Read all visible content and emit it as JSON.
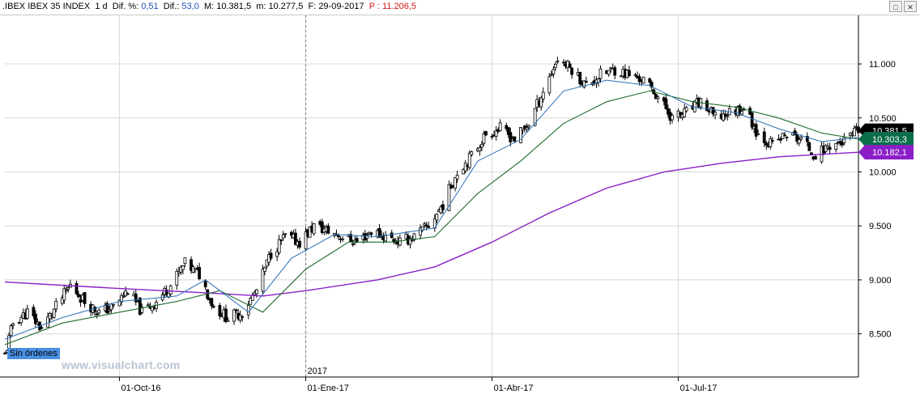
{
  "header": {
    "symbol": ".IBEX",
    "name": "IBEX 35 INDEX",
    "timeframe": "1 d",
    "diff_pct_label": "Dif. %:",
    "diff_pct_value": "0,51",
    "diff_label": "Dif.:",
    "diff_value": "53,0",
    "high_label": "M:",
    "high_value": "10.381,5",
    "low_label": "m:",
    "low_value": "10.277,5",
    "date_label": "F:",
    "date_value": "29-09-2017",
    "price_label": "P :",
    "price_value": "11.206,5"
  },
  "window_buttons": {
    "restore": "□",
    "close": "✕"
  },
  "orders_label": "Sin órdenes",
  "watermark": "www.visualchart.com",
  "colors": {
    "background": "#ffffff",
    "grid": "#d8d8d8",
    "candle": "#000000",
    "ma_fast": "#2a6fb8",
    "ma_mid": "#1d6b2a",
    "ma_slow": "#8a1fc8",
    "badge_last": "#000000",
    "badge_mid": "#0b6e4a",
    "badge_slow": "#8a1fc8"
  },
  "chart_data": {
    "type": "candlestick",
    "symbol": ".IBEX",
    "x_range": [
      "2016-08-08",
      "2017-09-29"
    ],
    "ylim": [
      8100,
      11450
    ],
    "yticks": [
      8500,
      9000,
      9500,
      10000,
      10500,
      11000
    ],
    "ytick_labels": [
      "8.500",
      "9.000",
      "9.500",
      "10.000",
      "10.500",
      "11.000"
    ],
    "year_label": {
      "date": "2017-01-02",
      "text": "2017"
    },
    "xticks": [
      {
        "date": "2016-10-03",
        "label": "01-Oct-16"
      },
      {
        "date": "2017-01-02",
        "label": "01-Ene-17"
      },
      {
        "date": "2017-04-03",
        "label": "01-Abr-17"
      },
      {
        "date": "2017-07-03",
        "label": "01-Jul-17"
      }
    ],
    "grid": true,
    "badges": [
      {
        "value": 10381.5,
        "label": "10.381,5",
        "series": "last"
      },
      {
        "value": 10303.3,
        "label": "10.303,3",
        "series": "ma_mid"
      },
      {
        "value": 10182.1,
        "label": "10.182,1",
        "series": "ma_slow"
      }
    ],
    "close_path": [
      [
        "2016-08-08",
        8300
      ],
      [
        "2016-08-12",
        8600
      ],
      [
        "2016-08-19",
        8700
      ],
      [
        "2016-08-26",
        8550
      ],
      [
        "2016-09-02",
        8750
      ],
      [
        "2016-09-09",
        8950
      ],
      [
        "2016-09-16",
        8800
      ],
      [
        "2016-09-23",
        8700
      ],
      [
        "2016-09-30",
        8750
      ],
      [
        "2016-10-07",
        8900
      ],
      [
        "2016-10-14",
        8700
      ],
      [
        "2016-10-21",
        8800
      ],
      [
        "2016-10-28",
        8950
      ],
      [
        "2016-11-04",
        9150
      ],
      [
        "2016-11-11",
        9050
      ],
      [
        "2016-11-18",
        8750
      ],
      [
        "2016-11-25",
        8650
      ],
      [
        "2016-12-02",
        8700
      ],
      [
        "2016-12-09",
        8900
      ],
      [
        "2016-12-16",
        9250
      ],
      [
        "2016-12-23",
        9400
      ],
      [
        "2016-12-30",
        9350
      ],
      [
        "2017-01-06",
        9500
      ],
      [
        "2017-01-13",
        9450
      ],
      [
        "2017-01-20",
        9400
      ],
      [
        "2017-01-27",
        9350
      ],
      [
        "2017-02-03",
        9450
      ],
      [
        "2017-02-10",
        9400
      ],
      [
        "2017-02-17",
        9350
      ],
      [
        "2017-02-24",
        9400
      ],
      [
        "2017-03-03",
        9500
      ],
      [
        "2017-03-10",
        9700
      ],
      [
        "2017-03-17",
        10000
      ],
      [
        "2017-03-24",
        10150
      ],
      [
        "2017-03-31",
        10350
      ],
      [
        "2017-04-07",
        10400
      ],
      [
        "2017-04-14",
        10300
      ],
      [
        "2017-04-21",
        10450
      ],
      [
        "2017-04-28",
        10750
      ],
      [
        "2017-05-05",
        11050
      ],
      [
        "2017-05-12",
        10950
      ],
      [
        "2017-05-19",
        10800
      ],
      [
        "2017-05-26",
        10900
      ],
      [
        "2017-06-02",
        10950
      ],
      [
        "2017-06-09",
        10900
      ],
      [
        "2017-06-16",
        10850
      ],
      [
        "2017-06-23",
        10700
      ],
      [
        "2017-06-30",
        10500
      ],
      [
        "2017-07-07",
        10550
      ],
      [
        "2017-07-14",
        10650
      ],
      [
        "2017-07-21",
        10500
      ],
      [
        "2017-07-28",
        10550
      ],
      [
        "2017-08-04",
        10600
      ],
      [
        "2017-08-11",
        10350
      ],
      [
        "2017-08-18",
        10250
      ],
      [
        "2017-08-25",
        10350
      ],
      [
        "2017-09-01",
        10300
      ],
      [
        "2017-09-08",
        10150
      ],
      [
        "2017-09-15",
        10250
      ],
      [
        "2017-09-22",
        10280
      ],
      [
        "2017-09-29",
        10381.5
      ]
    ],
    "ma_fast": [
      [
        "2016-08-08",
        8450
      ],
      [
        "2016-09-05",
        8650
      ],
      [
        "2016-10-03",
        8800
      ],
      [
        "2016-10-31",
        8850
      ],
      [
        "2016-11-14",
        9000
      ],
      [
        "2016-12-05",
        8700
      ],
      [
        "2016-12-26",
        9200
      ],
      [
        "2017-01-16",
        9420
      ],
      [
        "2017-02-06",
        9400
      ],
      [
        "2017-03-06",
        9480
      ],
      [
        "2017-03-27",
        10100
      ],
      [
        "2017-04-17",
        10300
      ],
      [
        "2017-05-08",
        10750
      ],
      [
        "2017-05-29",
        10850
      ],
      [
        "2017-06-19",
        10800
      ],
      [
        "2017-07-10",
        10600
      ],
      [
        "2017-07-31",
        10550
      ],
      [
        "2017-08-21",
        10400
      ],
      [
        "2017-09-11",
        10280
      ],
      [
        "2017-09-29",
        10320
      ]
    ],
    "ma_mid": [
      [
        "2016-08-08",
        8400
      ],
      [
        "2016-09-05",
        8600
      ],
      [
        "2016-10-03",
        8700
      ],
      [
        "2016-10-31",
        8800
      ],
      [
        "2016-11-21",
        8900
      ],
      [
        "2016-12-12",
        8700
      ],
      [
        "2017-01-02",
        9100
      ],
      [
        "2017-01-23",
        9350
      ],
      [
        "2017-02-13",
        9350
      ],
      [
        "2017-03-06",
        9400
      ],
      [
        "2017-03-27",
        9800
      ],
      [
        "2017-04-17",
        10100
      ],
      [
        "2017-05-08",
        10450
      ],
      [
        "2017-05-29",
        10650
      ],
      [
        "2017-06-19",
        10750
      ],
      [
        "2017-07-10",
        10650
      ],
      [
        "2017-07-31",
        10600
      ],
      [
        "2017-08-21",
        10500
      ],
      [
        "2017-09-11",
        10360
      ],
      [
        "2017-09-29",
        10303.3
      ]
    ],
    "ma_slow": [
      [
        "2016-08-08",
        8980
      ],
      [
        "2016-10-03",
        8920
      ],
      [
        "2016-11-14",
        8880
      ],
      [
        "2016-12-12",
        8850
      ],
      [
        "2017-01-02",
        8900
      ],
      [
        "2017-02-06",
        9000
      ],
      [
        "2017-03-06",
        9120
      ],
      [
        "2017-04-03",
        9350
      ],
      [
        "2017-05-01",
        9620
      ],
      [
        "2017-05-29",
        9850
      ],
      [
        "2017-06-26",
        10000
      ],
      [
        "2017-07-24",
        10080
      ],
      [
        "2017-08-21",
        10140
      ],
      [
        "2017-09-29",
        10182.1
      ]
    ]
  }
}
